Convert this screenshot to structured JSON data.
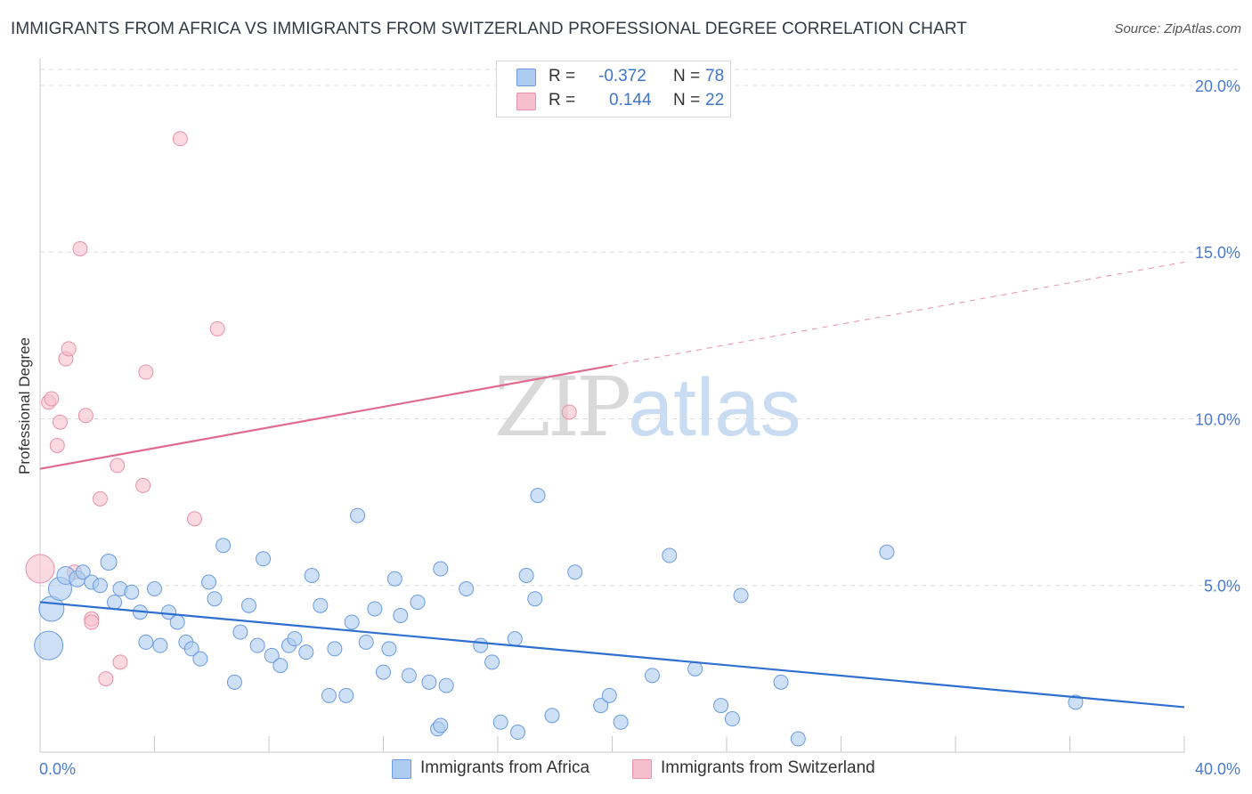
{
  "title": "IMMIGRANTS FROM AFRICA VS IMMIGRANTS FROM SWITZERLAND PROFESSIONAL DEGREE CORRELATION CHART",
  "source": "Source: ZipAtlas.com",
  "watermark": {
    "zip": "ZIP",
    "atlas": "atlas"
  },
  "legend": {
    "rows": [
      {
        "r_label": "R =",
        "r_value": "-0.372",
        "n_label": "N =",
        "n_value": "78",
        "color": "#aecbf0"
      },
      {
        "r_label": "R =",
        "r_value": "0.144",
        "n_label": "N =",
        "n_value": "22",
        "color": "#f6bfcd"
      }
    ]
  },
  "bottom_legend": {
    "africa": "Immigrants from Africa",
    "switzerland": "Immigrants from Switzerland"
  },
  "colors": {
    "africa_fill": "#aecbf0",
    "africa_stroke": "#6a9be0",
    "africa_line": "#2f6fcf",
    "swiss_fill": "#f6bfcd",
    "swiss_stroke": "#e890aa",
    "swiss_line": "#e06a8e",
    "tick_text": "#4a7bd0"
  },
  "chart_data": {
    "type": "scatter",
    "title": "IMMIGRANTS FROM AFRICA VS IMMIGRANTS FROM SWITZERLAND PROFESSIONAL DEGREE CORRELATION CHART",
    "xlabel": "",
    "ylabel": "Professional Degree",
    "xlim": [
      0,
      40
    ],
    "ylim": [
      0,
      20.8
    ],
    "x_tick_labels": [
      "0.0%",
      "40.0%"
    ],
    "y_ticks": [
      5,
      10,
      15,
      20
    ],
    "y_tick_labels": [
      "5.0%",
      "10.0%",
      "15.0%",
      "20.0%"
    ],
    "grid": "horizontal dashed",
    "legend_position": "top-center",
    "series": [
      {
        "name": "Immigrants from Africa",
        "points": [
          [
            0.3,
            3.2,
            16
          ],
          [
            0.4,
            4.3,
            14
          ],
          [
            0.7,
            4.9,
            13
          ],
          [
            0.9,
            5.3,
            10
          ],
          [
            1.3,
            5.2,
            9
          ],
          [
            1.5,
            5.4,
            8
          ],
          [
            1.8,
            5.1,
            8
          ],
          [
            2.1,
            5.0,
            8
          ],
          [
            2.4,
            5.7,
            9
          ],
          [
            2.6,
            4.5,
            8
          ],
          [
            2.8,
            4.9,
            8
          ],
          [
            3.2,
            4.8,
            8
          ],
          [
            3.5,
            4.2,
            8
          ],
          [
            3.7,
            3.3,
            8
          ],
          [
            4.0,
            4.9,
            8
          ],
          [
            4.2,
            3.2,
            8
          ],
          [
            4.5,
            4.2,
            8
          ],
          [
            4.8,
            3.9,
            8
          ],
          [
            5.1,
            3.3,
            8
          ],
          [
            5.3,
            3.1,
            8
          ],
          [
            5.6,
            2.8,
            8
          ],
          [
            5.9,
            5.1,
            8
          ],
          [
            6.1,
            4.6,
            8
          ],
          [
            6.4,
            6.2,
            8
          ],
          [
            6.8,
            2.1,
            8
          ],
          [
            7.0,
            3.6,
            8
          ],
          [
            7.3,
            4.4,
            8
          ],
          [
            7.6,
            3.2,
            8
          ],
          [
            7.8,
            5.8,
            8
          ],
          [
            8.1,
            2.9,
            8
          ],
          [
            8.4,
            2.6,
            8
          ],
          [
            8.7,
            3.2,
            8
          ],
          [
            8.9,
            3.4,
            8
          ],
          [
            9.3,
            3.0,
            8
          ],
          [
            9.5,
            5.3,
            8
          ],
          [
            9.8,
            4.4,
            8
          ],
          [
            10.1,
            1.7,
            8
          ],
          [
            10.3,
            3.1,
            8
          ],
          [
            10.7,
            1.7,
            8
          ],
          [
            10.9,
            3.9,
            8
          ],
          [
            11.1,
            7.1,
            8
          ],
          [
            11.4,
            3.3,
            8
          ],
          [
            11.7,
            4.3,
            8
          ],
          [
            12.0,
            2.4,
            8
          ],
          [
            12.2,
            3.1,
            8
          ],
          [
            12.4,
            5.2,
            8
          ],
          [
            12.6,
            4.1,
            8
          ],
          [
            12.9,
            2.3,
            8
          ],
          [
            13.2,
            4.5,
            8
          ],
          [
            13.6,
            2.1,
            8
          ],
          [
            13.9,
            0.7,
            8
          ],
          [
            14.0,
            0.8,
            8
          ],
          [
            14.0,
            5.5,
            8
          ],
          [
            14.2,
            2.0,
            8
          ],
          [
            14.9,
            4.9,
            8
          ],
          [
            15.4,
            3.2,
            8
          ],
          [
            15.8,
            2.7,
            8
          ],
          [
            16.1,
            0.9,
            8
          ],
          [
            16.6,
            3.4,
            8
          ],
          [
            16.7,
            0.6,
            8
          ],
          [
            17.0,
            5.3,
            8
          ],
          [
            17.3,
            4.6,
            8
          ],
          [
            17.4,
            7.7,
            8
          ],
          [
            17.9,
            1.1,
            8
          ],
          [
            18.7,
            5.4,
            8
          ],
          [
            19.6,
            1.4,
            8
          ],
          [
            19.9,
            1.7,
            8
          ],
          [
            20.3,
            0.9,
            8
          ],
          [
            21.4,
            2.3,
            8
          ],
          [
            22.0,
            5.9,
            8
          ],
          [
            22.9,
            2.5,
            8
          ],
          [
            23.8,
            1.4,
            8
          ],
          [
            24.2,
            1.0,
            8
          ],
          [
            24.5,
            4.7,
            8
          ],
          [
            25.9,
            2.1,
            8
          ],
          [
            26.5,
            0.4,
            8
          ],
          [
            29.6,
            6.0,
            8
          ],
          [
            36.2,
            1.5,
            8
          ]
        ],
        "trend": {
          "x": [
            0,
            40
          ],
          "y": [
            4.5,
            1.35
          ]
        }
      },
      {
        "name": "Immigrants from Switzerland",
        "points": [
          [
            0.0,
            5.5,
            16
          ],
          [
            0.3,
            10.5,
            8
          ],
          [
            0.4,
            10.6,
            8
          ],
          [
            0.6,
            9.2,
            8
          ],
          [
            0.7,
            9.9,
            8
          ],
          [
            0.9,
            11.8,
            8
          ],
          [
            1.0,
            12.1,
            8
          ],
          [
            1.2,
            5.4,
            8
          ],
          [
            1.4,
            15.1,
            8
          ],
          [
            1.6,
            10.1,
            8
          ],
          [
            1.8,
            4.0,
            8
          ],
          [
            1.8,
            3.9,
            8
          ],
          [
            2.1,
            7.6,
            8
          ],
          [
            2.3,
            2.2,
            8
          ],
          [
            2.7,
            8.6,
            8
          ],
          [
            2.8,
            2.7,
            8
          ],
          [
            3.6,
            8.0,
            8
          ],
          [
            3.7,
            11.4,
            8
          ],
          [
            4.9,
            18.4,
            8
          ],
          [
            5.4,
            7.0,
            8
          ],
          [
            6.2,
            12.7,
            8
          ],
          [
            18.5,
            10.2,
            8
          ]
        ],
        "trend": {
          "x": [
            0,
            20
          ],
          "y": [
            8.5,
            11.6
          ]
        },
        "trend_extension": {
          "x": [
            20,
            40
          ],
          "y": [
            11.6,
            14.7
          ]
        }
      }
    ]
  }
}
